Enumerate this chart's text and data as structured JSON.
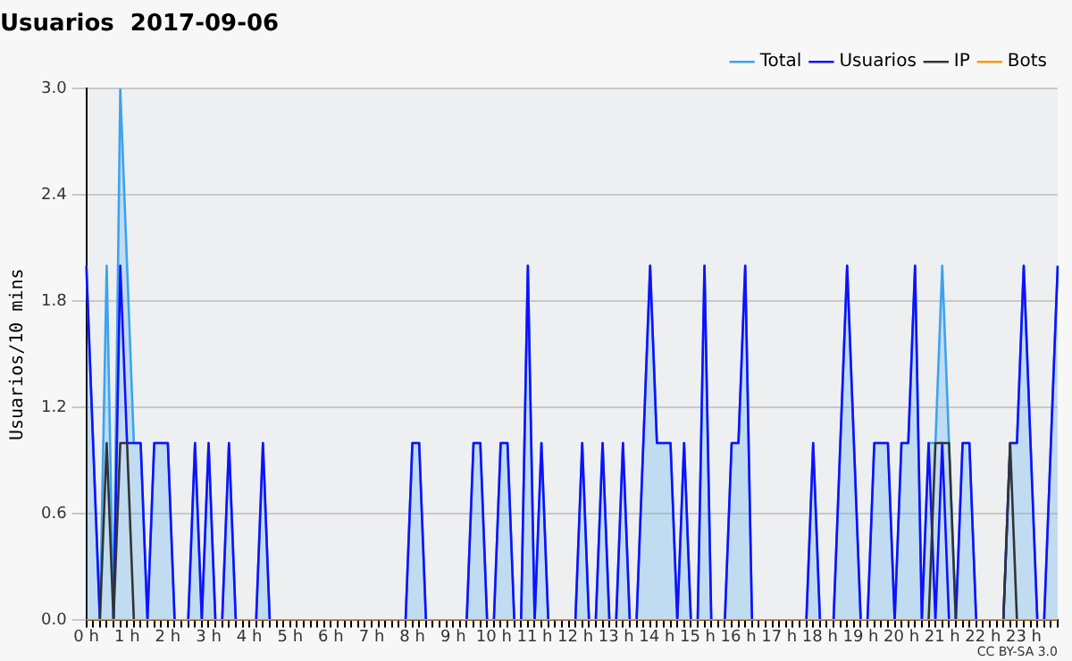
{
  "chart_data": {
    "type": "line",
    "title": "Usuarios  2017-09-06",
    "ylabel": "Usuarios/10 mins",
    "annotations": [
      "CC BY-SA 3.0"
    ],
    "categories": [
      "0 h",
      null,
      null,
      null,
      null,
      null,
      "1 h",
      null,
      null,
      null,
      null,
      null,
      "2 h",
      null,
      null,
      null,
      null,
      null,
      "3 h",
      null,
      null,
      null,
      null,
      null,
      "4 h",
      null,
      null,
      null,
      null,
      null,
      "5 h",
      null,
      null,
      null,
      null,
      null,
      "6 h",
      null,
      null,
      null,
      null,
      null,
      "7 h",
      null,
      null,
      null,
      null,
      null,
      "8 h",
      null,
      null,
      null,
      null,
      null,
      "9 h",
      null,
      null,
      null,
      null,
      null,
      "10 h",
      null,
      null,
      null,
      null,
      null,
      "11 h",
      null,
      null,
      null,
      null,
      null,
      "12 h",
      null,
      null,
      null,
      null,
      null,
      "13 h",
      null,
      null,
      null,
      null,
      null,
      "14 h",
      null,
      null,
      null,
      null,
      null,
      "15 h",
      null,
      null,
      null,
      null,
      null,
      "16 h",
      null,
      null,
      null,
      null,
      null,
      "17 h",
      null,
      null,
      null,
      null,
      null,
      "18 h",
      null,
      null,
      null,
      null,
      null,
      "19 h",
      null,
      null,
      null,
      null,
      null,
      "20 h",
      null,
      null,
      null,
      null,
      null,
      "21 h",
      null,
      null,
      null,
      null,
      null,
      "22 h",
      null,
      null,
      null,
      null,
      null,
      "23 h",
      null,
      null,
      null,
      null,
      null
    ],
    "series": [
      {
        "name": "Total",
        "type": "area",
        "color": "#3ba3f0",
        "values": [
          2,
          1,
          0,
          2,
          0,
          3,
          2,
          1,
          1,
          0,
          1,
          1,
          1,
          0,
          0,
          0,
          1,
          0,
          1,
          0,
          0,
          1,
          0,
          0,
          0,
          0,
          1,
          0,
          0,
          0,
          0,
          0,
          0,
          0,
          0,
          0,
          0,
          0,
          0,
          0,
          0,
          0,
          0,
          0,
          0,
          0,
          0,
          0,
          1,
          1,
          0,
          0,
          0,
          0,
          0,
          0,
          0,
          1,
          1,
          0,
          0,
          1,
          1,
          0,
          0,
          2,
          0,
          1,
          0,
          0,
          0,
          0,
          0,
          1,
          0,
          0,
          1,
          0,
          0,
          1,
          0,
          0,
          1,
          2,
          1,
          1,
          1,
          0,
          1,
          0,
          0,
          2,
          0,
          0,
          0,
          1,
          1,
          2,
          0,
          0,
          0,
          0,
          0,
          0,
          0,
          0,
          0,
          1,
          0,
          0,
          0,
          1,
          2,
          1,
          0,
          0,
          1,
          1,
          1,
          0,
          1,
          1,
          2,
          0,
          1,
          1,
          2,
          1,
          0,
          1,
          1,
          0,
          0,
          0,
          0,
          0,
          1,
          1,
          2,
          1,
          0,
          0,
          1,
          2
        ]
      },
      {
        "name": "Usuarios",
        "type": "line",
        "color": "#1010ff",
        "values": [
          2,
          1,
          0,
          null,
          0,
          2,
          1,
          1,
          1,
          0,
          1,
          1,
          1,
          0,
          0,
          0,
          1,
          0,
          1,
          0,
          0,
          1,
          0,
          0,
          0,
          0,
          1,
          0,
          0,
          0,
          0,
          0,
          0,
          0,
          0,
          0,
          0,
          0,
          0,
          0,
          0,
          0,
          0,
          0,
          0,
          0,
          0,
          0,
          1,
          1,
          0,
          0,
          0,
          0,
          0,
          0,
          0,
          1,
          1,
          0,
          0,
          1,
          1,
          0,
          0,
          2,
          0,
          1,
          0,
          0,
          0,
          0,
          0,
          1,
          0,
          0,
          1,
          0,
          0,
          1,
          0,
          0,
          1,
          2,
          1,
          1,
          1,
          0,
          1,
          0,
          0,
          2,
          0,
          0,
          0,
          1,
          1,
          2,
          0,
          0,
          0,
          0,
          0,
          0,
          0,
          0,
          0,
          1,
          0,
          0,
          0,
          1,
          2,
          1,
          0,
          0,
          1,
          1,
          1,
          0,
          1,
          1,
          2,
          0,
          1,
          0,
          1,
          0,
          0,
          1,
          1,
          0,
          0,
          0,
          0,
          0,
          1,
          1,
          2,
          1,
          0,
          0,
          1,
          2
        ]
      },
      {
        "name": "IP",
        "type": "line",
        "color": "#333333",
        "values": [
          0,
          0,
          0,
          1,
          0,
          1,
          1,
          0,
          0,
          0,
          0,
          0,
          0,
          0,
          0,
          0,
          0,
          0,
          0,
          0,
          0,
          0,
          0,
          0,
          0,
          0,
          0,
          0,
          0,
          0,
          0,
          0,
          0,
          0,
          0,
          0,
          0,
          0,
          0,
          0,
          0,
          0,
          0,
          0,
          0,
          0,
          0,
          0,
          0,
          0,
          0,
          0,
          0,
          0,
          0,
          0,
          0,
          0,
          0,
          0,
          0,
          0,
          0,
          0,
          0,
          0,
          0,
          0,
          0,
          0,
          0,
          0,
          0,
          0,
          0,
          0,
          0,
          0,
          0,
          0,
          0,
          0,
          0,
          0,
          0,
          0,
          0,
          0,
          0,
          0,
          0,
          0,
          0,
          0,
          0,
          0,
          0,
          0,
          0,
          0,
          0,
          0,
          0,
          0,
          0,
          0,
          0,
          0,
          0,
          0,
          0,
          0,
          0,
          0,
          0,
          0,
          0,
          0,
          0,
          0,
          0,
          0,
          0,
          0,
          0,
          1,
          1,
          1,
          0,
          0,
          0,
          0,
          0,
          0,
          0,
          0,
          1,
          0,
          0,
          0,
          0,
          0,
          0,
          0
        ]
      },
      {
        "name": "Bots",
        "type": "line",
        "color": "#ff9900",
        "values": [
          0,
          0,
          0,
          0,
          0,
          0,
          0,
          0,
          0,
          0,
          0,
          0,
          0,
          0,
          0,
          0,
          0,
          0,
          0,
          0,
          0,
          0,
          0,
          0,
          0,
          0,
          0,
          0,
          0,
          0,
          0,
          0,
          0,
          0,
          0,
          0,
          0,
          0,
          0,
          0,
          0,
          0,
          0,
          0,
          0,
          0,
          0,
          0,
          0,
          0,
          0,
          0,
          0,
          0,
          0,
          0,
          0,
          0,
          0,
          0,
          0,
          0,
          0,
          0,
          0,
          0,
          0,
          0,
          0,
          0,
          0,
          0,
          0,
          0,
          0,
          0,
          0,
          0,
          0,
          0,
          0,
          0,
          0,
          0,
          0,
          0,
          0,
          0,
          0,
          0,
          0,
          0,
          0,
          0,
          0,
          0,
          0,
          0,
          0,
          0,
          0,
          0,
          0,
          0,
          0,
          0,
          0,
          0,
          0,
          0,
          0,
          0,
          0,
          0,
          0,
          0,
          0,
          0,
          0,
          0,
          0,
          0,
          0,
          0,
          0,
          0,
          0,
          0,
          0,
          0,
          0,
          0,
          0,
          0,
          0,
          0,
          0,
          0,
          0,
          0,
          0,
          0,
          0,
          0
        ]
      }
    ],
    "ylim": [
      0,
      3
    ],
    "yticks": [
      {
        "value": 0,
        "label": "0.0"
      },
      {
        "value": 0.6,
        "label": "0.6"
      },
      {
        "value": 1.2,
        "label": "1.2"
      },
      {
        "value": 1.8,
        "label": "1.8"
      },
      {
        "value": 2.4,
        "label": "2.4"
      },
      {
        "value": 3,
        "label": "3.0"
      }
    ],
    "grid": "y",
    "legend": "top right",
    "marker": "none",
    "line_style": "solid"
  }
}
